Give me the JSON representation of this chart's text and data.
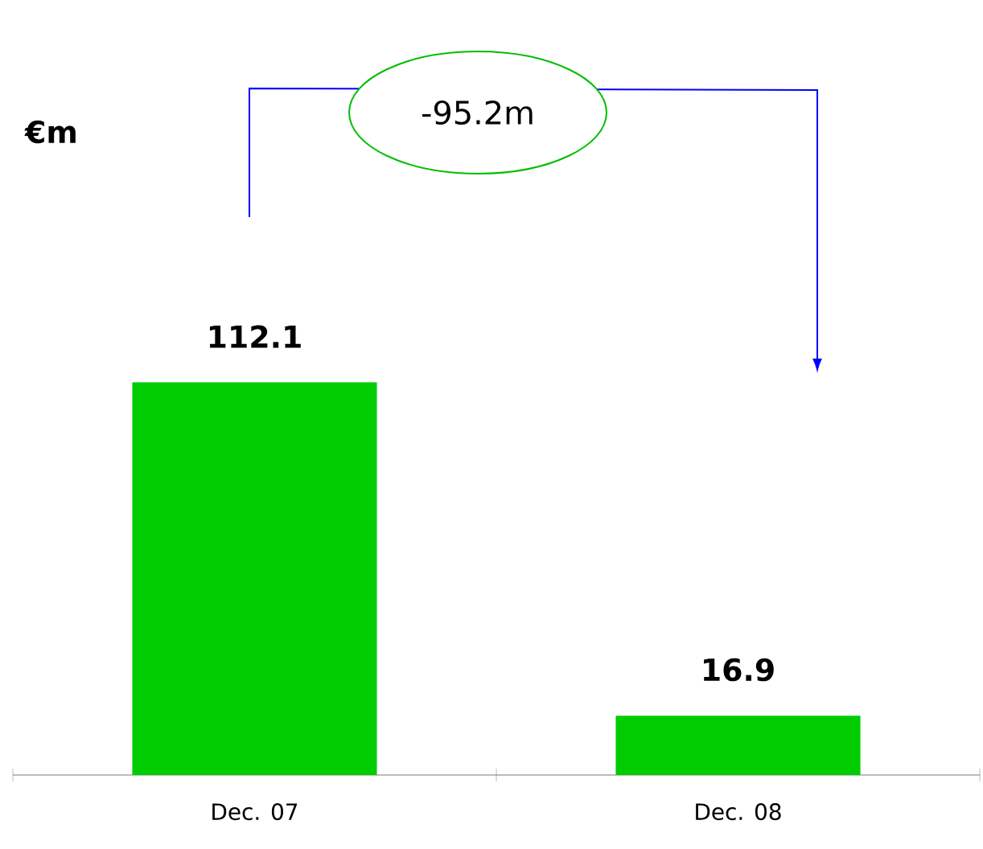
{
  "chart_data": {
    "type": "bar",
    "categories": [
      "Dec. 07",
      "Dec. 08"
    ],
    "values": [
      112.1,
      16.9
    ],
    "color": "#00cc00",
    "data_labels": true,
    "annotations": [
      "-95.2m",
      "€m"
    ]
  }
}
